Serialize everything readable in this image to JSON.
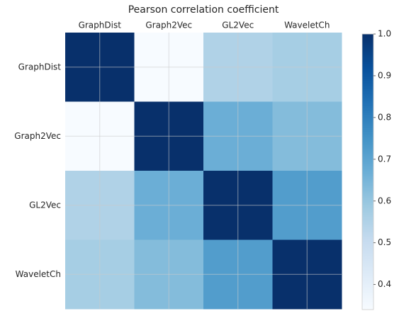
{
  "chart_data": {
    "type": "heatmap",
    "title": "Pearson correlation coefficient",
    "columns": [
      "GraphDist",
      "Graph2Vec",
      "GL2Vec",
      "WaveletCh"
    ],
    "rows": [
      "GraphDist",
      "Graph2Vec",
      "GL2Vec",
      "WaveletCh"
    ],
    "values": [
      [
        1.0,
        0.34,
        0.55,
        0.57
      ],
      [
        0.34,
        1.0,
        0.67,
        0.63
      ],
      [
        0.55,
        0.67,
        1.0,
        0.72
      ],
      [
        0.57,
        0.63,
        0.72,
        1.0
      ]
    ],
    "colormap": "Blues",
    "zlim": [
      0.34,
      1.0
    ],
    "colorbar_ticks": [
      0.4,
      0.5,
      0.6,
      0.7,
      0.8,
      0.9,
      {
        "value": 1.0,
        "label": "1.0"
      }
    ],
    "grid": true
  }
}
